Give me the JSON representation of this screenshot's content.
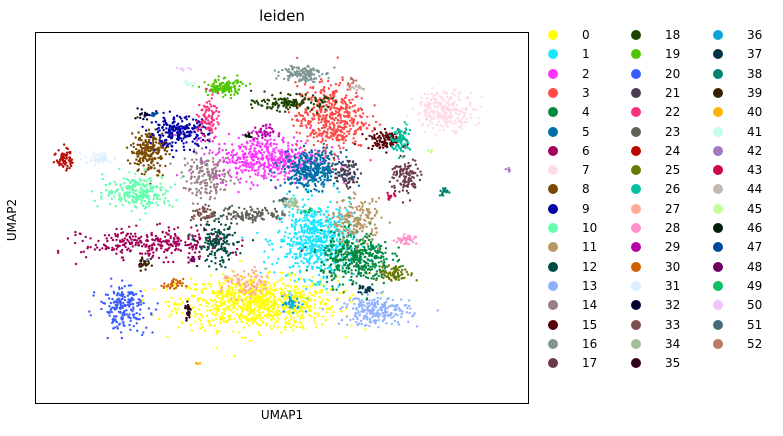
{
  "chart_data": {
    "type": "scatter",
    "title": "leiden",
    "xlabel": "UMAP1",
    "ylabel": "UMAP2",
    "xticks": [],
    "yticks": [],
    "grid": false,
    "legend_placement": "right, outside plot, 3 columns",
    "point_size": 1.2,
    "clusters": [
      {
        "name": "0",
        "color": "#ffff00",
        "x": 0.45,
        "y": 0.27,
        "sx": 0.08,
        "sy": 0.035,
        "n": 900
      },
      {
        "name": "1",
        "color": "#1ce6ff",
        "x": 0.57,
        "y": 0.44,
        "sx": 0.04,
        "sy": 0.05,
        "n": 650
      },
      {
        "name": "2",
        "color": "#ff34ff",
        "x": 0.47,
        "y": 0.66,
        "sx": 0.055,
        "sy": 0.03,
        "n": 480
      },
      {
        "name": "3",
        "color": "#ff4a46",
        "x": 0.6,
        "y": 0.77,
        "sx": 0.035,
        "sy": 0.045,
        "n": 480
      },
      {
        "name": "4",
        "color": "#008941",
        "x": 0.65,
        "y": 0.39,
        "sx": 0.035,
        "sy": 0.035,
        "n": 420
      },
      {
        "name": "5",
        "color": "#006fa6",
        "x": 0.56,
        "y": 0.63,
        "sx": 0.03,
        "sy": 0.025,
        "n": 360
      },
      {
        "name": "6",
        "color": "#a30059",
        "x": 0.24,
        "y": 0.43,
        "sx": 0.07,
        "sy": 0.02,
        "n": 300
      },
      {
        "name": "7",
        "color": "#ffdbe5",
        "x": 0.83,
        "y": 0.79,
        "sx": 0.03,
        "sy": 0.025,
        "n": 260
      },
      {
        "name": "8",
        "color": "#7a4900",
        "x": 0.23,
        "y": 0.68,
        "sx": 0.018,
        "sy": 0.03,
        "n": 220
      },
      {
        "name": "9",
        "color": "#0000a6",
        "x": 0.29,
        "y": 0.73,
        "sx": 0.03,
        "sy": 0.02,
        "n": 230
      },
      {
        "name": "10",
        "color": "#63ffac",
        "x": 0.21,
        "y": 0.57,
        "sx": 0.035,
        "sy": 0.022,
        "n": 240
      },
      {
        "name": "11",
        "color": "#b79762",
        "x": 0.65,
        "y": 0.49,
        "sx": 0.025,
        "sy": 0.03,
        "n": 180
      },
      {
        "name": "12",
        "color": "#004d43",
        "x": 0.37,
        "y": 0.43,
        "sx": 0.02,
        "sy": 0.03,
        "n": 150
      },
      {
        "name": "13",
        "color": "#8fb0ff",
        "x": 0.69,
        "y": 0.25,
        "sx": 0.035,
        "sy": 0.02,
        "n": 220
      },
      {
        "name": "14",
        "color": "#997d87",
        "x": 0.35,
        "y": 0.61,
        "sx": 0.025,
        "sy": 0.03,
        "n": 170
      },
      {
        "name": "15",
        "color": "#5a0007",
        "x": 0.71,
        "y": 0.71,
        "sx": 0.02,
        "sy": 0.012,
        "n": 120
      },
      {
        "name": "16",
        "color": "#809693",
        "x": 0.54,
        "y": 0.89,
        "sx": 0.02,
        "sy": 0.012,
        "n": 130
      },
      {
        "name": "17",
        "color": "#6a3a4c",
        "x": 0.75,
        "y": 0.61,
        "sx": 0.015,
        "sy": 0.025,
        "n": 110
      },
      {
        "name": "18",
        "color": "#1b4400",
        "x": 0.52,
        "y": 0.81,
        "sx": 0.035,
        "sy": 0.01,
        "n": 150
      },
      {
        "name": "19",
        "color": "#4fc601",
        "x": 0.38,
        "y": 0.85,
        "sx": 0.02,
        "sy": 0.012,
        "n": 120
      },
      {
        "name": "20",
        "color": "#3b5dff",
        "x": 0.18,
        "y": 0.26,
        "sx": 0.025,
        "sy": 0.03,
        "n": 200
      },
      {
        "name": "21",
        "color": "#4a3b53",
        "x": 0.63,
        "y": 0.62,
        "sx": 0.012,
        "sy": 0.018,
        "n": 80
      },
      {
        "name": "22",
        "color": "#ff2f80",
        "x": 0.35,
        "y": 0.77,
        "sx": 0.01,
        "sy": 0.03,
        "n": 90
      },
      {
        "name": "23",
        "color": "#61615a",
        "x": 0.44,
        "y": 0.51,
        "sx": 0.035,
        "sy": 0.01,
        "n": 110
      },
      {
        "name": "24",
        "color": "#ba0900",
        "x": 0.06,
        "y": 0.66,
        "sx": 0.008,
        "sy": 0.015,
        "n": 60
      },
      {
        "name": "25",
        "color": "#6b7900",
        "x": 0.73,
        "y": 0.35,
        "sx": 0.018,
        "sy": 0.01,
        "n": 80
      },
      {
        "name": "26",
        "color": "#00c2a0",
        "x": 0.74,
        "y": 0.71,
        "sx": 0.01,
        "sy": 0.02,
        "n": 80
      },
      {
        "name": "27",
        "color": "#ffaa92",
        "x": 0.43,
        "y": 0.32,
        "sx": 0.025,
        "sy": 0.02,
        "n": 100
      },
      {
        "name": "28",
        "color": "#ff90c9",
        "x": 0.75,
        "y": 0.44,
        "sx": 0.01,
        "sy": 0.008,
        "n": 40
      },
      {
        "name": "29",
        "color": "#b903aa",
        "x": 0.46,
        "y": 0.73,
        "sx": 0.012,
        "sy": 0.01,
        "n": 40
      },
      {
        "name": "30",
        "color": "#d16100",
        "x": 0.28,
        "y": 0.32,
        "sx": 0.01,
        "sy": 0.008,
        "n": 35
      },
      {
        "name": "31",
        "color": "#ddefff",
        "x": 0.13,
        "y": 0.66,
        "sx": 0.015,
        "sy": 0.008,
        "n": 45
      },
      {
        "name": "32",
        "color": "#000035",
        "x": 0.22,
        "y": 0.78,
        "sx": 0.005,
        "sy": 0.008,
        "n": 20
      },
      {
        "name": "33",
        "color": "#7b4f4b",
        "x": 0.34,
        "y": 0.51,
        "sx": 0.012,
        "sy": 0.012,
        "n": 50
      },
      {
        "name": "34",
        "color": "#a1c299",
        "x": 0.52,
        "y": 0.54,
        "sx": 0.01,
        "sy": 0.01,
        "n": 40
      },
      {
        "name": "35",
        "color": "#300018",
        "x": 0.31,
        "y": 0.25,
        "sx": 0.003,
        "sy": 0.015,
        "n": 25
      },
      {
        "name": "36",
        "color": "#0aa6d8",
        "x": 0.52,
        "y": 0.27,
        "sx": 0.01,
        "sy": 0.01,
        "n": 40
      },
      {
        "name": "37",
        "color": "#013349",
        "x": 0.67,
        "y": 0.31,
        "sx": 0.008,
        "sy": 0.006,
        "n": 25
      },
      {
        "name": "38",
        "color": "#00846f",
        "x": 0.83,
        "y": 0.57,
        "sx": 0.006,
        "sy": 0.006,
        "n": 20
      },
      {
        "name": "39",
        "color": "#372101",
        "x": 0.22,
        "y": 0.38,
        "sx": 0.006,
        "sy": 0.01,
        "n": 25
      },
      {
        "name": "40",
        "color": "#ffb500",
        "x": 0.33,
        "y": 0.11,
        "sx": 0.003,
        "sy": 0.003,
        "n": 6
      },
      {
        "name": "41",
        "color": "#c2ffed",
        "x": 0.31,
        "y": 0.86,
        "sx": 0.006,
        "sy": 0.004,
        "n": 10
      },
      {
        "name": "42",
        "color": "#a079bf",
        "x": 0.96,
        "y": 0.63,
        "sx": 0.003,
        "sy": 0.003,
        "n": 6
      },
      {
        "name": "43",
        "color": "#cc0744",
        "x": 0.72,
        "y": 0.56,
        "sx": 0.006,
        "sy": 0.004,
        "n": 12
      },
      {
        "name": "44",
        "color": "#c0b9b2",
        "x": 0.65,
        "y": 0.85,
        "sx": 0.01,
        "sy": 0.004,
        "n": 15
      },
      {
        "name": "45",
        "color": "#c2ff99",
        "x": 0.8,
        "y": 0.68,
        "sx": 0.003,
        "sy": 0.003,
        "n": 6
      },
      {
        "name": "46",
        "color": "#001e09",
        "x": 0.43,
        "y": 0.72,
        "sx": 0.006,
        "sy": 0.004,
        "n": 10
      },
      {
        "name": "47",
        "color": "#00489c",
        "x": 0.24,
        "y": 0.78,
        "sx": 0.006,
        "sy": 0.004,
        "n": 10
      },
      {
        "name": "48",
        "color": "#6f0062",
        "x": 0.32,
        "y": 0.39,
        "sx": 0.006,
        "sy": 0.004,
        "n": 10
      },
      {
        "name": "49",
        "color": "#0cbd66",
        "x": 0.55,
        "y": 0.52,
        "sx": 0.006,
        "sy": 0.004,
        "n": 10
      },
      {
        "name": "50",
        "color": "#eec3ff",
        "x": 0.3,
        "y": 0.9,
        "sx": 0.006,
        "sy": 0.004,
        "n": 8
      },
      {
        "name": "51",
        "color": "#456d75",
        "x": 0.5,
        "y": 0.55,
        "sx": 0.006,
        "sy": 0.004,
        "n": 10
      },
      {
        "name": "52",
        "color": "#b77b68",
        "x": 0.64,
        "y": 0.87,
        "sx": 0.006,
        "sy": 0.004,
        "n": 10
      }
    ]
  }
}
